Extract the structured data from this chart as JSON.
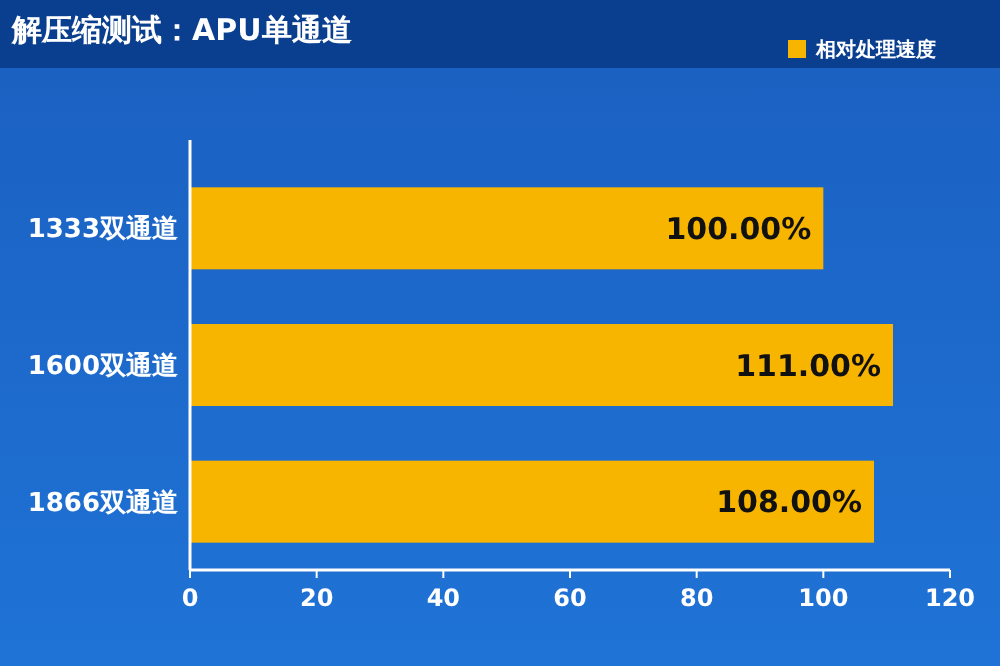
{
  "chart_data": {
    "type": "bar",
    "orientation": "horizontal",
    "title": "解压缩测试：APU单通道",
    "categories": [
      "1333双通道",
      "1600双通道",
      "1866双通道"
    ],
    "series": [
      {
        "name": "相对处理速度",
        "color": "#f7b500",
        "values": [
          100,
          111,
          108
        ]
      }
    ],
    "value_labels": [
      "100.00%",
      "111.00%",
      "108.00%"
    ],
    "xlim": [
      0,
      120
    ],
    "xticks": [
      0,
      20,
      40,
      60,
      80,
      100,
      120
    ],
    "legend": "top right",
    "grid": false
  }
}
